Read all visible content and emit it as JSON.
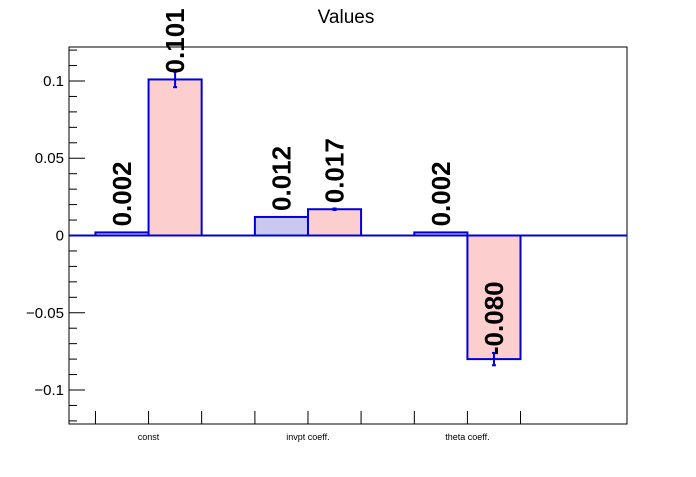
{
  "chart_data": {
    "type": "bar",
    "title": "Values",
    "xlabel": "",
    "ylabel": "",
    "categories": [
      "const",
      "invpt coeff.",
      "theta coeff."
    ],
    "ylim": [
      -0.122,
      0.122
    ],
    "yticks": [
      {
        "value": 0.1,
        "label": "0.1"
      },
      {
        "value": 0.05,
        "label": "0.05"
      },
      {
        "value": 0,
        "label": "0"
      },
      {
        "value": -0.05,
        "label": "−0.05"
      },
      {
        "value": -0.1,
        "label": "−0.1"
      }
    ],
    "grid": false,
    "legend": "none",
    "series": [
      {
        "fill_color": "#c8c8f0",
        "edge_color": "#0000dd",
        "values": [
          0.002,
          0.012,
          0.002
        ],
        "labels": [
          "0.002",
          "0.012",
          "0.002"
        ],
        "errors": [
          0.0,
          0.0,
          0.0
        ]
      },
      {
        "fill_color": "#fccece",
        "edge_color": "#0000dd",
        "values": [
          0.101,
          0.017,
          -0.08
        ],
        "labels": [
          "0.101",
          "0.017",
          "-0.080"
        ],
        "errors": [
          0.005,
          0.0005,
          0.004
        ]
      }
    ]
  }
}
